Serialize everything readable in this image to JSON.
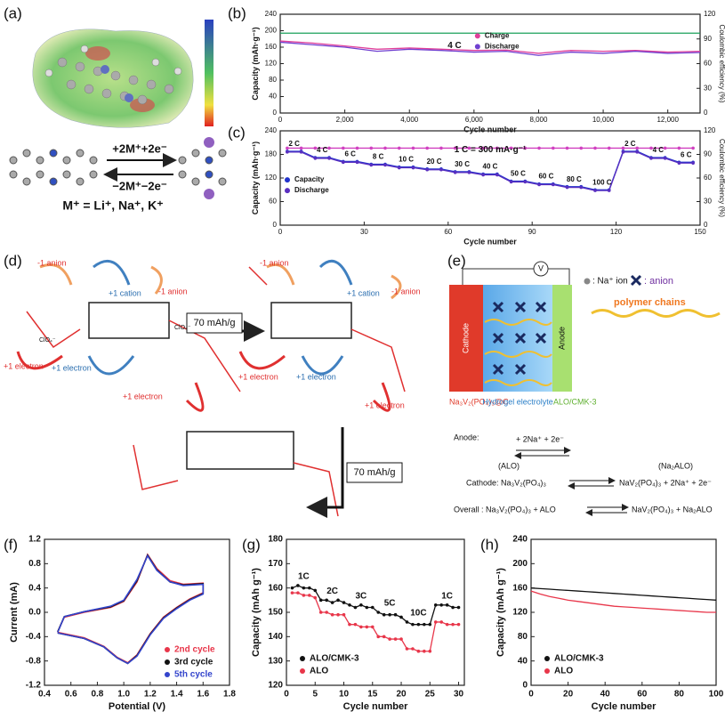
{
  "panel_labels": [
    "(a)",
    "(b)",
    "(c)",
    "(d)",
    "(e)",
    "(f)",
    "(g)",
    "(h)"
  ],
  "panel_a": {
    "forward": "+2M⁺+2e⁻",
    "backward": "−2M⁺−2e⁻",
    "ions": "M⁺ = Li⁺, Na⁺, K⁺"
  },
  "panel_d": {
    "anion_labels": [
      "-1 anion",
      "-1 anion",
      "-1 anion",
      "-1 anion"
    ],
    "cation_labels": [
      "+1 cation",
      "+1 cation"
    ],
    "electron_labels": [
      "+1 electron",
      "+1 electron",
      "+1 electron",
      "+1 electron",
      "+1 electron",
      "+1 electron"
    ],
    "counter_ions": [
      "ClO₄⁻",
      "ClO₄⁻"
    ],
    "step_labels": [
      "70 mAh/g",
      "70 mAh/g"
    ]
  },
  "panel_e": {
    "voltmeter": "V",
    "cathode": "Cathode",
    "anode": "Anode",
    "na_legend": ": Na⁺ ion",
    "anion_legend": ": anion",
    "polymer": "polymer chains",
    "cathode_material": "Na₃V₂(PO₄)₃@C",
    "electrolyte": "Hydrogel electrolyte",
    "anode_material": "ALO/CMK-3",
    "anode_eq": [
      "Anode:",
      "(ALO)",
      "+ 2Na⁺ + 2e⁻",
      "(Na₂ALO)"
    ],
    "cathode_eq": [
      "Cathode:  Na₃V₂(PO₄)₃",
      "NaV₂(PO₄)₃ + 2Na⁺ + 2e⁻"
    ],
    "overall_eq": [
      "Overall :  Na₃V₂(PO₄)₃ + ALO",
      "NaV₂(PO₄)₃ + Na₂ALO"
    ]
  },
  "chart_data": [
    {
      "type": "line",
      "xlabel": "Cycle number",
      "ylabel": "Capacity (mAh·g⁻¹)",
      "y2label": "Coulombic efficiency (%)",
      "x": [
        0,
        1000,
        2000,
        3000,
        4000,
        5000,
        6000,
        7000,
        8000,
        9000,
        10000,
        11000,
        12000,
        13000
      ],
      "xlim": [
        0,
        13000
      ],
      "xticks": [
        0,
        {
          "value": 2000,
          "label": "2,000"
        },
        {
          "value": 4000,
          "label": "4,000"
        },
        {
          "value": 6000,
          "label": "6,000"
        },
        {
          "value": 8000,
          "label": "8,000"
        },
        {
          "value": 10000,
          "label": "10,000"
        },
        {
          "value": 12000,
          "label": "12,000"
        }
      ],
      "ylim": [
        0,
        240
      ],
      "yticks": [
        0,
        40,
        80,
        120,
        160,
        200,
        240
      ],
      "y2lim": [
        0,
        120
      ],
      "y2ticks": [
        0,
        30,
        60,
        90,
        120
      ],
      "legend": "center",
      "annotations": [
        "4 C"
      ],
      "series": [
        {
          "name": "Charge",
          "color": "#e0409a",
          "values": [
            175,
            170,
            163,
            155,
            158,
            155,
            152,
            153,
            145,
            152,
            150,
            152,
            148,
            150
          ]
        },
        {
          "name": "Discharge",
          "color": "#7040d0",
          "values": [
            172,
            166,
            160,
            150,
            155,
            152,
            148,
            150,
            140,
            148,
            145,
            150,
            145,
            147
          ]
        },
        {
          "color": "#1aa05a",
          "axis": "y2",
          "values": [
            97,
            97,
            97,
            97,
            97,
            97,
            97,
            97,
            97,
            97,
            97,
            97,
            97,
            97
          ]
        }
      ]
    },
    {
      "type": "line",
      "xlabel": "Cycle number",
      "ylabel": "Capacity (mAh·g⁻¹)",
      "y2label": "Coulombic efficiency (%)",
      "x": [
        2.5,
        7.5,
        12.5,
        17.5,
        22.5,
        27.5,
        32.5,
        37.5,
        42.5,
        47.5,
        52.5,
        57.5,
        62.5,
        67.5,
        72.5,
        77.5,
        82.5,
        87.5,
        92.5,
        97.5,
        102.5,
        107.5,
        112.5,
        117.5,
        122.5,
        127.5,
        132.5,
        137.5,
        142.5,
        147.5
      ],
      "xlim": [
        0,
        150
      ],
      "xticks": [
        0,
        30,
        60,
        90,
        120,
        150
      ],
      "ylim": [
        0,
        240
      ],
      "yticks": [
        0,
        60,
        120,
        180,
        240
      ],
      "y2lim": [
        0,
        120
      ],
      "y2ticks": [
        0,
        30,
        60,
        90,
        120
      ],
      "legend": "left",
      "markers": true,
      "annotations": [
        "1 C = 300 mA·g⁻¹"
      ],
      "rate_labels": [
        "2 C",
        "4 C",
        "6 C",
        "8 C",
        "10 C",
        "20 C",
        "30 C",
        "40 C",
        "50 C",
        "60 C",
        "80 C",
        "100 C",
        "2 C",
        "4 C",
        "6 C"
      ],
      "series": [
        {
          "name": "Capacity",
          "color": "#2233cc",
          "values": [
            188,
            188,
            172,
            172,
            162,
            162,
            155,
            155,
            148,
            148,
            143,
            143,
            136,
            136,
            130,
            130,
            112,
            112,
            105,
            105,
            98,
            98,
            90,
            90,
            188,
            188,
            172,
            172,
            160,
            160
          ]
        },
        {
          "name": "Discharge",
          "color": "#5a2fc0",
          "values": [
            186,
            186,
            170,
            170,
            160,
            160,
            153,
            153,
            146,
            146,
            141,
            141,
            134,
            134,
            128,
            128,
            110,
            110,
            103,
            103,
            96,
            96,
            88,
            88,
            186,
            186,
            170,
            170,
            158,
            158
          ]
        },
        {
          "color": "#d040c0",
          "axis": "y2",
          "values": [
            98,
            98,
            98,
            98,
            98,
            98,
            98,
            98,
            98,
            98,
            98,
            98,
            98,
            98,
            98,
            98,
            98,
            98,
            98,
            98,
            98,
            98,
            98,
            98,
            98,
            98,
            98,
            98,
            98,
            98
          ]
        }
      ]
    },
    {
      "type": "line",
      "xlabel": "Potential (V)",
      "ylabel": "Current (mA)",
      "x": [
        0.5,
        0.55,
        0.7,
        0.9,
        1.0,
        1.1,
        1.18,
        1.25,
        1.35,
        1.45,
        1.6,
        1.6,
        1.5,
        1.4,
        1.3,
        1.2,
        1.1,
        1.03,
        0.95,
        0.85,
        0.7,
        0.5
      ],
      "xlim": [
        0.4,
        1.8
      ],
      "xticks": [
        0.4,
        0.6,
        0.8,
        {
          "value": 1,
          "label": "1.0"
        },
        1.2,
        1.4,
        1.6,
        1.8
      ],
      "ylim": [
        -1.2,
        1.2
      ],
      "yticks": [
        -1.2,
        -0.8,
        -0.4,
        {
          "value": 0,
          "label": "0.0"
        },
        0.4,
        0.8,
        1.2
      ],
      "legend": "lower right",
      "legend_text_colored": true,
      "series": [
        {
          "name": "2nd  cycle",
          "color": "#e8364a",
          "values": [
            -0.32,
            -0.08,
            0.0,
            0.08,
            0.18,
            0.5,
            0.95,
            0.72,
            0.52,
            0.46,
            0.48,
            0.32,
            0.22,
            0.08,
            -0.08,
            -0.35,
            -0.7,
            -0.83,
            -0.74,
            -0.56,
            -0.42,
            -0.33
          ]
        },
        {
          "name": "3rd  cycle",
          "color": "#111111",
          "values": [
            -0.32,
            -0.07,
            0.01,
            0.09,
            0.19,
            0.52,
            0.94,
            0.7,
            0.5,
            0.45,
            0.47,
            0.31,
            0.21,
            0.07,
            -0.09,
            -0.36,
            -0.71,
            -0.84,
            -0.75,
            -0.57,
            -0.43,
            -0.34
          ]
        },
        {
          "name": "5th  cycle",
          "color": "#3344cc",
          "values": [
            -0.33,
            -0.07,
            0.01,
            0.1,
            0.2,
            0.54,
            0.93,
            0.69,
            0.5,
            0.44,
            0.46,
            0.3,
            0.2,
            0.06,
            -0.1,
            -0.37,
            -0.72,
            -0.84,
            -0.75,
            -0.57,
            -0.43,
            -0.34
          ]
        }
      ]
    },
    {
      "type": "line",
      "xlabel": "Cycle number",
      "ylabel": "Capacity (mAh g⁻¹)",
      "x": [
        1,
        2,
        3,
        4,
        5,
        6,
        7,
        8,
        9,
        10,
        11,
        12,
        13,
        14,
        15,
        16,
        17,
        18,
        19,
        20,
        21,
        22,
        23,
        24,
        25,
        26,
        27,
        28,
        29,
        30
      ],
      "xlim": [
        0,
        31
      ],
      "xticks": [
        0,
        5,
        10,
        15,
        20,
        25,
        30
      ],
      "ylim": [
        120,
        180
      ],
      "yticks": [
        120,
        130,
        140,
        150,
        160,
        170,
        180
      ],
      "legend": "lower left",
      "markers": true,
      "rate_labels": [
        "1C",
        "2C",
        "3C",
        "5C",
        "10C",
        "1C"
      ],
      "series": [
        {
          "name": "ALO/CMK-3",
          "color": "#111111",
          "values": [
            160,
            161,
            160,
            160,
            159,
            155,
            155,
            154,
            155,
            154,
            153,
            152,
            153,
            152,
            152,
            150,
            149,
            149,
            149,
            148,
            146,
            145,
            145,
            145,
            145,
            153,
            153,
            153,
            152,
            152
          ]
        },
        {
          "name": "ALO",
          "color": "#e8364a",
          "values": [
            158,
            158,
            157,
            157,
            156,
            150,
            150,
            149,
            149,
            149,
            145,
            145,
            144,
            144,
            144,
            140,
            140,
            139,
            139,
            139,
            135,
            135,
            134,
            134,
            134,
            146,
            146,
            145,
            145,
            145
          ]
        }
      ]
    },
    {
      "type": "line",
      "xlabel": "Cycle number",
      "ylabel": "Capacity (mAh g⁻¹)",
      "x": [
        0,
        5,
        10,
        15,
        20,
        25,
        30,
        35,
        40,
        45,
        50,
        55,
        60,
        65,
        70,
        75,
        80,
        85,
        90,
        95,
        100
      ],
      "xlim": [
        0,
        100
      ],
      "xticks": [
        0,
        20,
        40,
        60,
        80,
        100
      ],
      "ylim": [
        0,
        240
      ],
      "yticks": [
        0,
        40,
        80,
        120,
        160,
        200,
        240
      ],
      "legend": "lower left",
      "series": [
        {
          "name": "ALO/CMK-3",
          "color": "#111111",
          "values": [
            160,
            159,
            158,
            157,
            156,
            155,
            154,
            153,
            152,
            151,
            150,
            149,
            148,
            147,
            146,
            145,
            144,
            143,
            142,
            141,
            140
          ]
        },
        {
          "name": "ALO",
          "color": "#e8364a",
          "values": [
            155,
            150,
            146,
            143,
            140,
            138,
            136,
            134,
            132,
            130,
            129,
            128,
            127,
            126,
            125,
            124,
            123,
            122,
            121,
            120,
            120
          ]
        }
      ]
    }
  ]
}
